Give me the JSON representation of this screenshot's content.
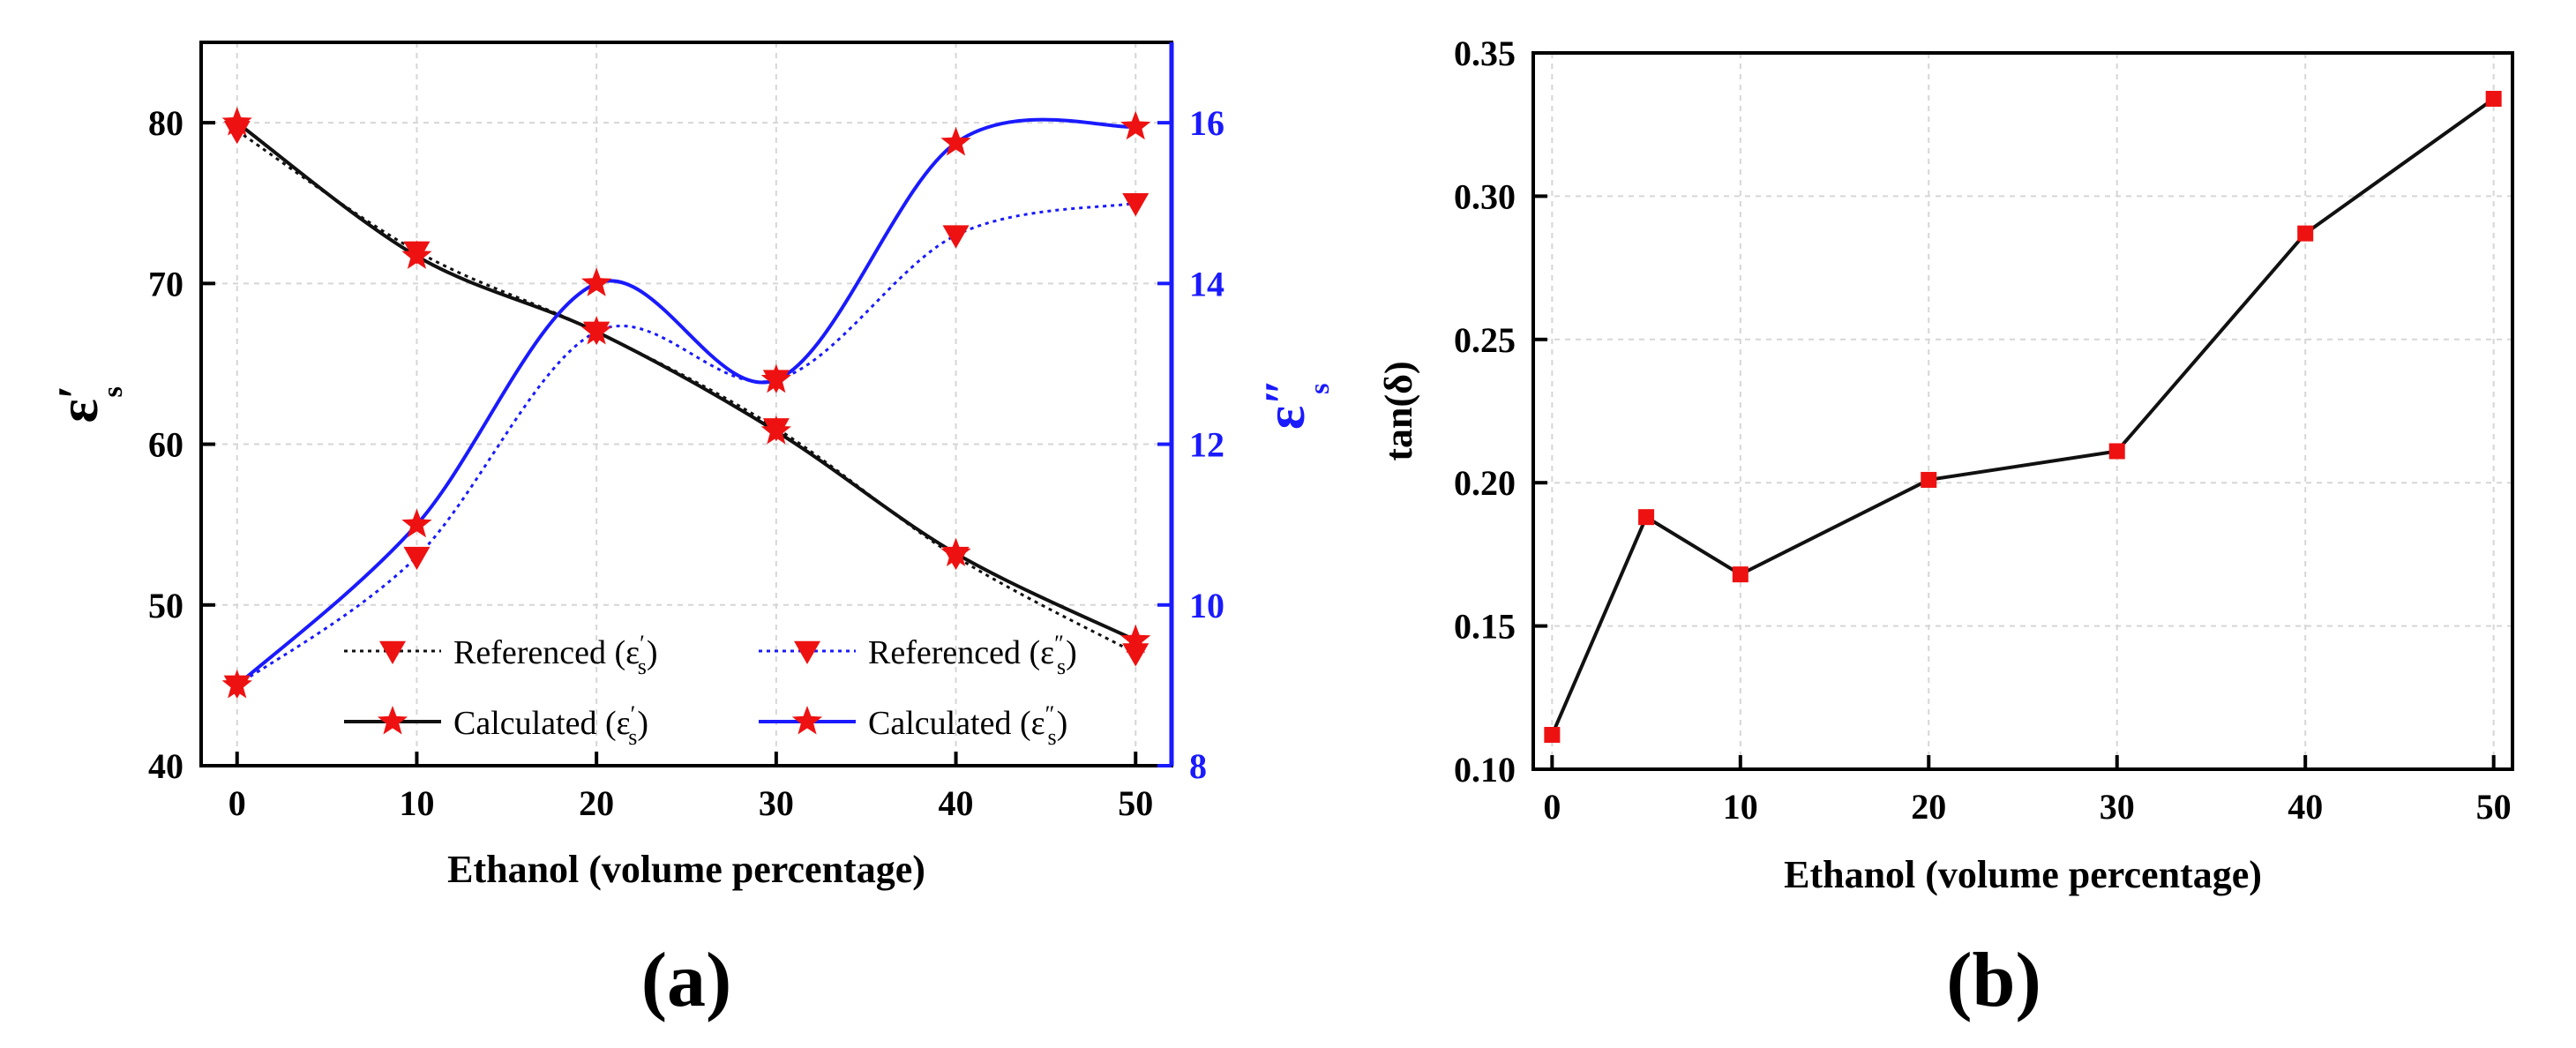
{
  "chart_data": [
    {
      "panel_label": "(a)",
      "type": "line",
      "xlabel": "Ethanol (volume percentage)",
      "ylabel_left": "ε",
      "ylabel_left_sub": "s",
      "ylabel_left_sup": "′",
      "ylabel_right": "ε",
      "ylabel_right_sub": "s",
      "ylabel_right_sup": "″",
      "xlim": [
        -2,
        52
      ],
      "ylim_left": [
        40,
        85
      ],
      "ylim_right": [
        8,
        17
      ],
      "x_ticks": [
        0,
        10,
        20,
        30,
        40,
        50
      ],
      "y_left_ticks": [
        40,
        50,
        60,
        70,
        80
      ],
      "y_right_ticks": [
        8,
        10,
        12,
        14,
        16
      ],
      "grid": true,
      "colors": {
        "black": "#111111",
        "blue": "#1a1aff",
        "marker": "#ee1111"
      },
      "series": [
        {
          "name": "Referenced (ε′s)",
          "legend_main": "Referenced (ε",
          "legend_sup": "′",
          "legend_sub": "s",
          "axis": "left",
          "color": "#111111",
          "line": "dotted",
          "marker": "triangle-down",
          "x": [
            0,
            10,
            20,
            30,
            40,
            50
          ],
          "values": [
            79.5,
            72.0,
            67.0,
            61.0,
            53.0,
            47.0
          ]
        },
        {
          "name": "Referenced (ε″s)",
          "legend_main": "Referenced (ε",
          "legend_sup": "″",
          "legend_sub": "s",
          "axis": "right",
          "color": "#1a1aff",
          "line": "dotted",
          "marker": "triangle-down",
          "x": [
            0,
            10,
            20,
            30,
            40,
            50
          ],
          "values": [
            9.0,
            10.6,
            13.4,
            12.8,
            14.6,
            15.0
          ]
        },
        {
          "name": "Calculated (ε′s)",
          "legend_main": "Calculated (ε",
          "legend_sup": "′",
          "legend_sub": "s",
          "axis": "left",
          "color": "#111111",
          "line": "solid",
          "marker": "star",
          "x": [
            0,
            10,
            20,
            30,
            40,
            50
          ],
          "values": [
            80.0,
            71.7,
            67.0,
            60.8,
            53.2,
            47.8
          ]
        },
        {
          "name": "Calculated (ε″s)",
          "legend_main": "Calculated (ε",
          "legend_sup": "″",
          "legend_sub": "s",
          "axis": "right",
          "color": "#1a1aff",
          "line": "solid",
          "marker": "star",
          "x": [
            0,
            10,
            20,
            30,
            40,
            50
          ],
          "values": [
            9.0,
            11.0,
            14.0,
            12.8,
            15.75,
            15.95
          ]
        }
      ]
    },
    {
      "panel_label": "(b)",
      "type": "line",
      "xlabel": "Ethanol (volume percentage)",
      "ylabel": "tan(δ)",
      "xlim": [
        -1,
        51
      ],
      "ylim": [
        0.1,
        0.35
      ],
      "x_ticks": [
        0,
        10,
        20,
        30,
        40,
        50
      ],
      "y_ticks": [
        0.1,
        0.15,
        0.2,
        0.25,
        0.3,
        0.35
      ],
      "y_tick_labels": [
        "0.10",
        "0.15",
        "0.20",
        "0.25",
        "0.30",
        "0.35"
      ],
      "grid": true,
      "colors": {
        "line": "#111111",
        "marker": "#ee1111"
      },
      "series": [
        {
          "name": "tan(δ)",
          "x": [
            0,
            5,
            10,
            20,
            30,
            40,
            50
          ],
          "values": [
            0.112,
            0.188,
            0.168,
            0.201,
            0.211,
            0.287,
            0.334
          ]
        }
      ]
    }
  ]
}
